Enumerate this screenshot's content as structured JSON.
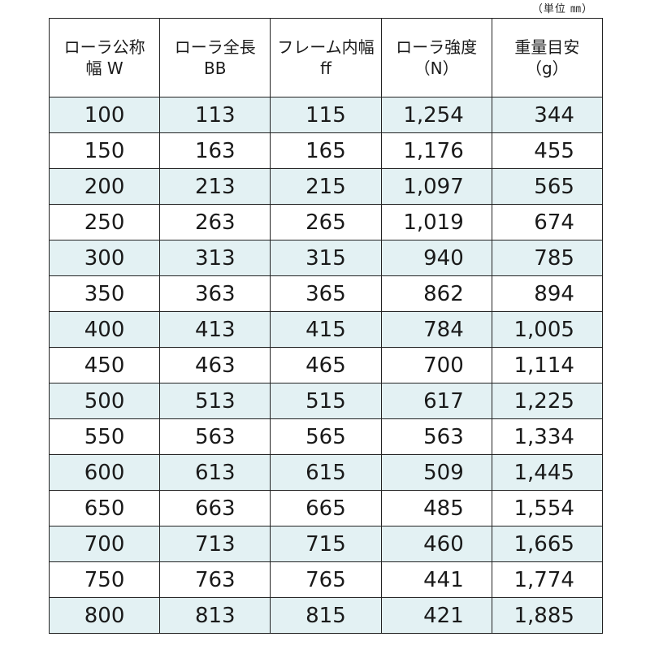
{
  "unit_note": "（単位 ㎜）",
  "headers": [
    {
      "line1": "ローラ公称",
      "line2": "幅 W"
    },
    {
      "line1": "ローラ全長",
      "line2": "BB"
    },
    {
      "line1": "フレーム内幅",
      "line2": "ff"
    },
    {
      "line1": "ローラ強度",
      "line2": "（N）"
    },
    {
      "line1": "重量目安",
      "line2": "（g）"
    }
  ],
  "rows": [
    [
      "100",
      "113",
      "115",
      "1,254",
      "344"
    ],
    [
      "150",
      "163",
      "165",
      "1,176",
      "455"
    ],
    [
      "200",
      "213",
      "215",
      "1,097",
      "565"
    ],
    [
      "250",
      "263",
      "265",
      "1,019",
      "674"
    ],
    [
      "300",
      "313",
      "315",
      "940",
      "785"
    ],
    [
      "350",
      "363",
      "365",
      "862",
      "894"
    ],
    [
      "400",
      "413",
      "415",
      "784",
      "1,005"
    ],
    [
      "450",
      "463",
      "465",
      "700",
      "1,114"
    ],
    [
      "500",
      "513",
      "515",
      "617",
      "1,225"
    ],
    [
      "550",
      "563",
      "565",
      "563",
      "1,334"
    ],
    [
      "600",
      "613",
      "615",
      "509",
      "1,445"
    ],
    [
      "650",
      "663",
      "665",
      "485",
      "1,554"
    ],
    [
      "700",
      "713",
      "715",
      "460",
      "1,665"
    ],
    [
      "750",
      "763",
      "765",
      "441",
      "1,774"
    ],
    [
      "800",
      "813",
      "815",
      "421",
      "1,885"
    ]
  ],
  "colors": {
    "shaded_row": "#e3f1f3",
    "border": "#222222"
  }
}
